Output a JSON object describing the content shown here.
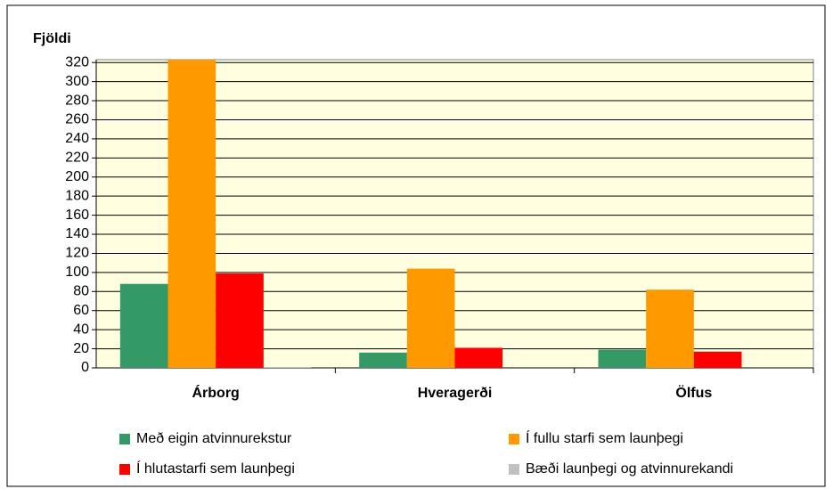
{
  "chart_data": {
    "type": "bar",
    "y_label": "Fjöldi",
    "categories": [
      "Árborg",
      "Hveragerði",
      "Ölfus"
    ],
    "series": [
      {
        "name": "Með eigin atvinnurekstur",
        "color": "#339966",
        "values": [
          88,
          16,
          19
        ]
      },
      {
        "name": "Í fullu starfi sem launþegi",
        "color": "#ff9900",
        "values": [
          323,
          104,
          82
        ]
      },
      {
        "name": "Í hlutastarfi sem launþegi",
        "color": "#ff0000",
        "values": [
          99,
          21,
          17
        ]
      },
      {
        "name": "Bæði launþegi og atvinnurekandi",
        "color": "#c0c0c0",
        "values": [
          1,
          0,
          0
        ]
      }
    ],
    "ylim": [
      0,
      323
    ],
    "yticks": [
      0,
      20,
      40,
      60,
      80,
      100,
      120,
      140,
      160,
      180,
      200,
      220,
      240,
      260,
      280,
      300,
      320
    ],
    "grid": true,
    "plot_background": "#ffffe0"
  }
}
